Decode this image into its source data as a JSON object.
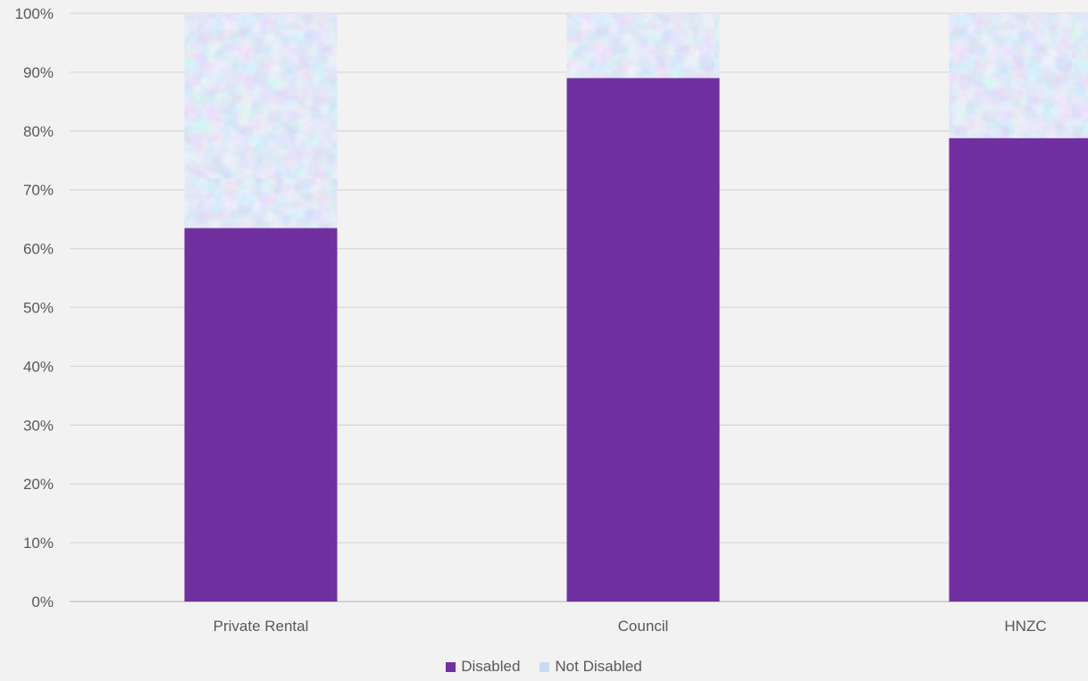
{
  "chart_data": {
    "type": "bar",
    "stacked": true,
    "normalized_percent": true,
    "categories": [
      "Private Rental",
      "Council",
      "HNZC"
    ],
    "series": [
      {
        "name": "Disabled",
        "values": [
          63.5,
          89,
          78.8
        ],
        "color": "#7030a0"
      },
      {
        "name": "Not Disabled",
        "values": [
          36.5,
          11,
          21.2
        ],
        "color": "#c9dcf3",
        "pattern": "textured-blue-pink"
      }
    ],
    "y_ticks": [
      "0%",
      "10%",
      "20%",
      "30%",
      "40%",
      "50%",
      "60%",
      "70%",
      "80%",
      "90%",
      "100%"
    ],
    "ylim": [
      0,
      100
    ],
    "grid": true,
    "legend_position": "bottom",
    "title": "",
    "xlabel": "",
    "ylabel": ""
  }
}
